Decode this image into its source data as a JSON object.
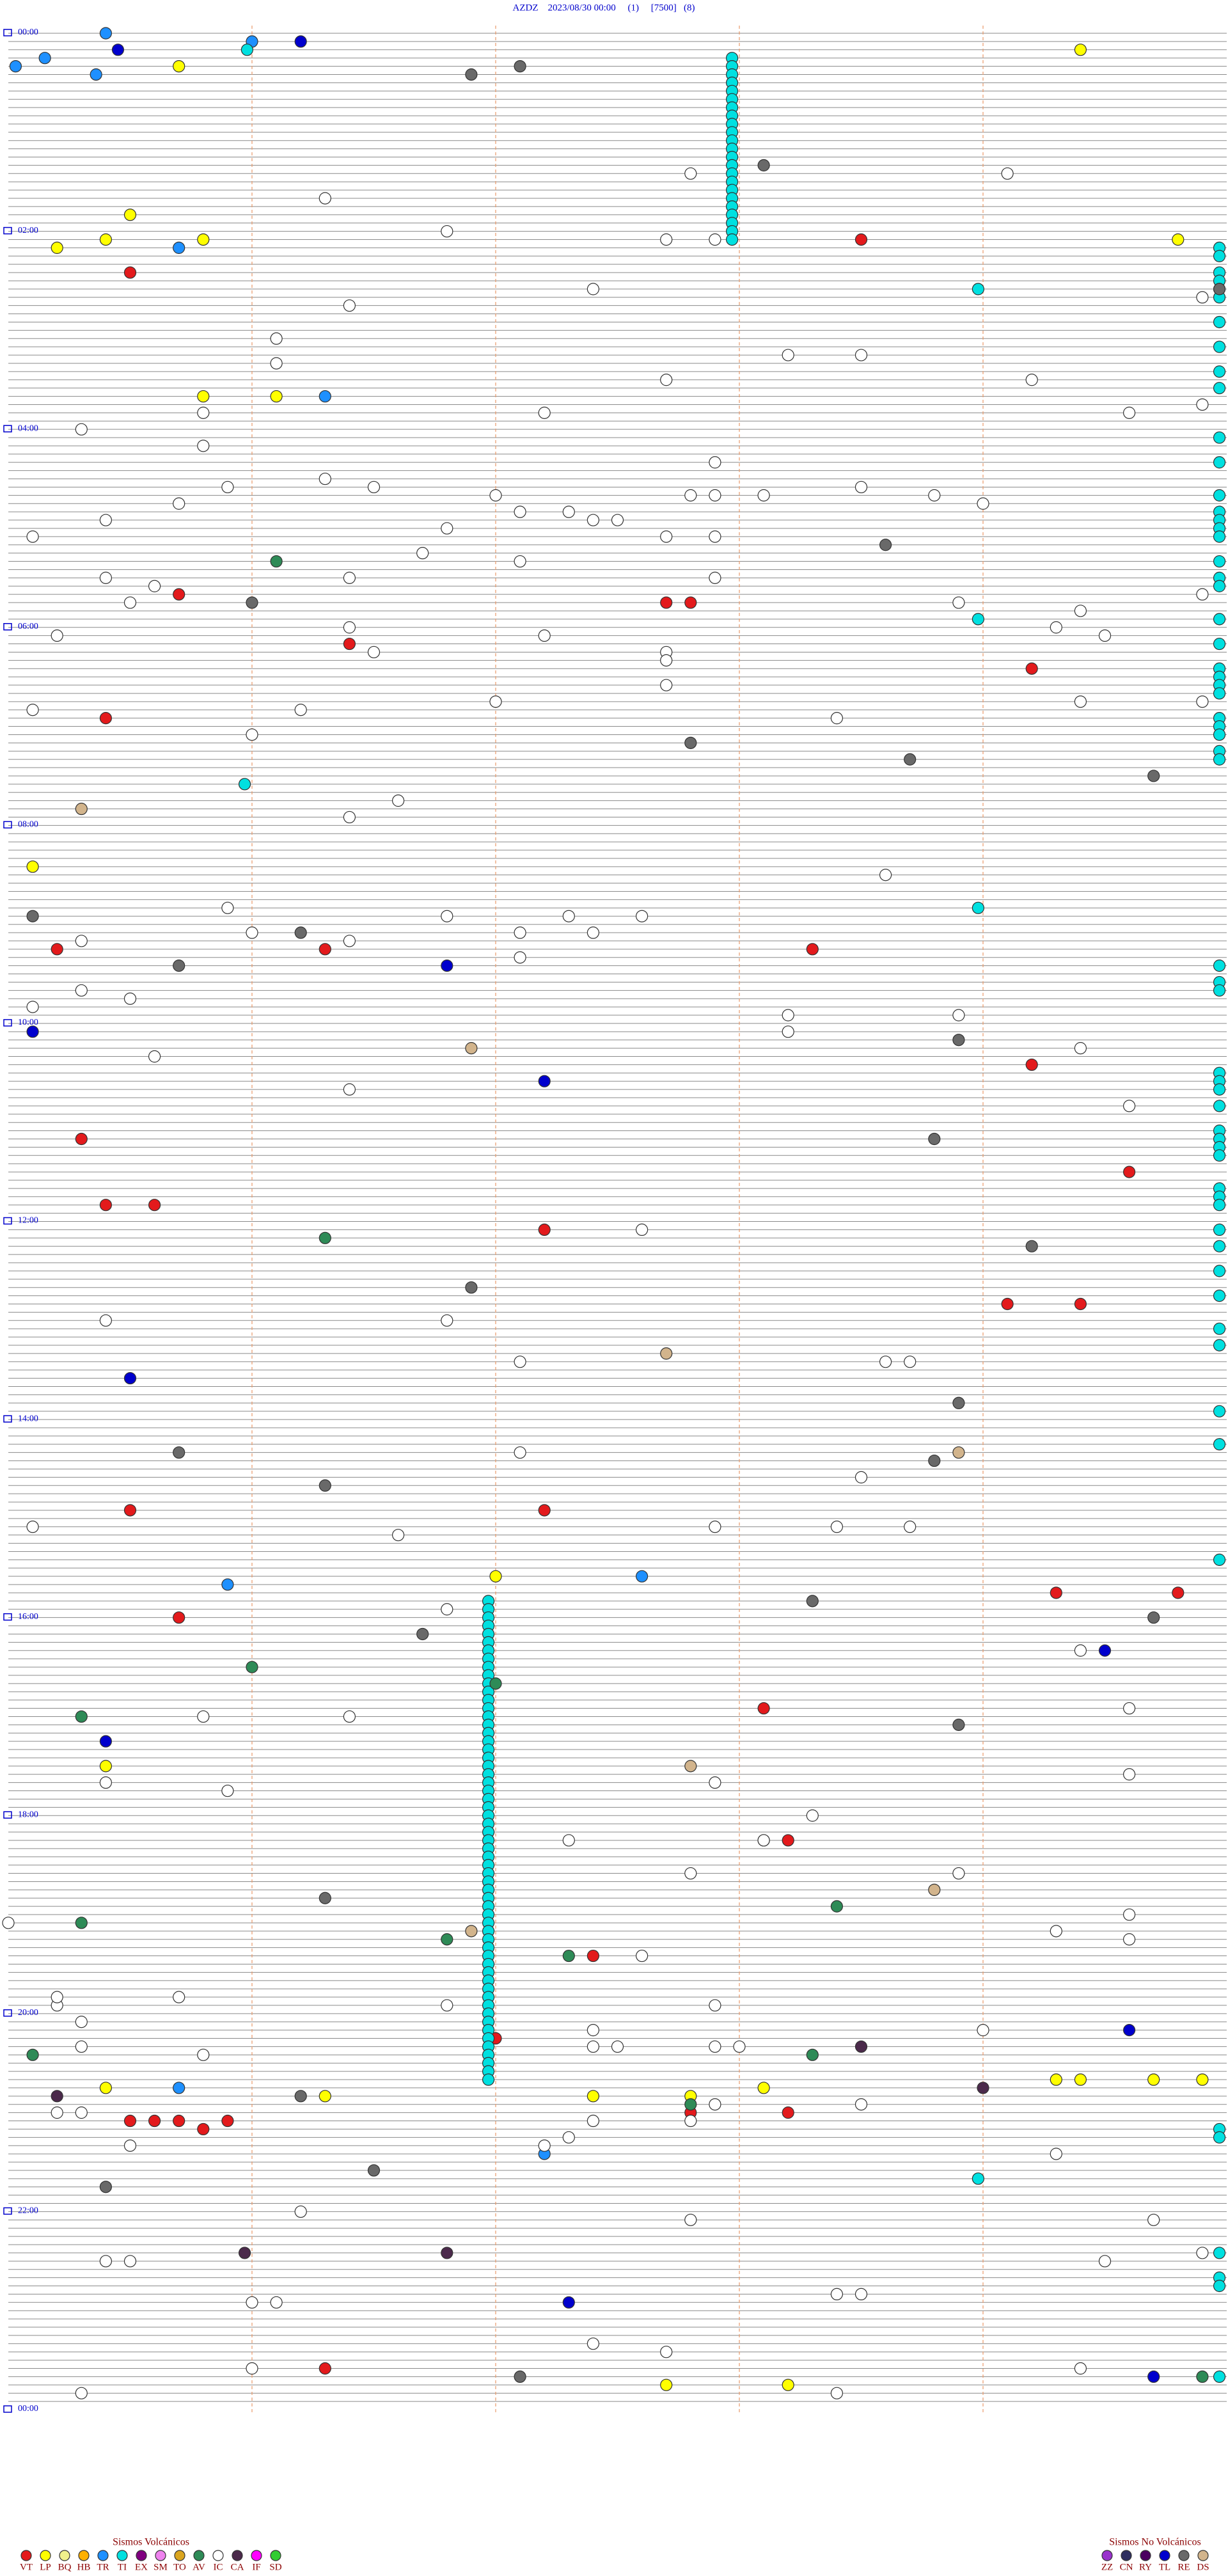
{
  "chart_data": {
    "type": "helicorder",
    "title": "AZDZ    2023/08/30 00:00     (1)     [7500]   (8)",
    "xlim": [
      0,
      5
    ],
    "xticks": [
      1,
      2,
      3,
      4
    ],
    "ylim": [
      0,
      1440
    ],
    "yticks": [
      {
        "value": 0,
        "label": "00:00"
      },
      {
        "value": 120,
        "label": "02:00"
      },
      {
        "value": 240,
        "label": "04:00"
      },
      {
        "value": 360,
        "label": "06:00"
      },
      {
        "value": 480,
        "label": "08:00"
      },
      {
        "value": 600,
        "label": "10:00"
      },
      {
        "value": 720,
        "label": "12:00"
      },
      {
        "value": 840,
        "label": "14:00"
      },
      {
        "value": 960,
        "label": "16:00"
      },
      {
        "value": 1080,
        "label": "18:00"
      },
      {
        "value": 1200,
        "label": "20:00"
      },
      {
        "value": 1320,
        "label": "22:00"
      },
      {
        "value": 1440,
        "label": "00:00"
      }
    ],
    "groups": [
      {
        "title": "Sismos Volcánicos",
        "series": [
          {
            "name": "VT",
            "color": "#e31a1c",
            "values": [
              145.5,
              340.7,
              347.7,
              347.8,
              371.4,
              389.2,
              415.4,
              556.3,
              555.2,
              558.3,
              629.2,
              670.3,
              694.6,
              710.4,
              710.6,
              727.2,
              774.1,
              774.4,
              895.5,
              897.2,
              949.3,
              949.8,
              960.7,
              1018.1,
              1098.1,
              1098.2,
              1167.4,
              1217.0,
              1262.8,
              1263.2,
              1265.5,
              1265.6,
              1265.7,
              1265.9,
              1270.8,
              1416.3,
              128.5
            ]
          },
          {
            "name": "LP",
            "color": "#ffff00",
            "values": [
              14.4,
              20.7,
              110.5,
              130.2,
              125.4,
              125.8,
              129.8,
              220.8,
              221.1,
              505.1,
              937.0,
              1050.4,
              1245.4,
              1251.3,
              1252.4,
              1252.8,
              1248.1,
              1244.3,
              1244.4,
              1244.7,
              1244.9,
              1427.7,
              1428.2
            ]
          },
          {
            "name": "BQ",
            "color": "#f0f08c",
            "values": []
          },
          {
            "name": "HB",
            "color": "#ffb000",
            "values": []
          },
          {
            "name": "TR",
            "color": "#1e90ff",
            "values": [
              0.4,
              6.0,
              20.03,
              15.15,
              25.36,
              130.7,
              221.3,
              940.9,
              937.6,
              1245.7,
              1287.2
            ]
          },
          {
            "name": "TI",
            "color": "#00e0e0",
            "values": [
              10.98,
              158.98,
              358.98,
              455.97,
              533.98,
              1303.98,
              17.97,
              22.97,
              27.97,
              32.97,
              37.97,
              42.97,
              47.97,
              52.97,
              57.97,
              62.97,
              67.97,
              72.97,
              77.97,
              82.97,
              87.97,
              92.97,
              97.97,
              102.97,
              107.97,
              112.97,
              117.97,
              122.97,
              127.97,
              951.97,
              956.97,
              961.97,
              966.97,
              971.97,
              976.97,
              981.97,
              986.97,
              991.97,
              996.97,
              1001.97,
              1006.97,
              1011.97,
              1016.97,
              1021.97,
              1026.97,
              1031.97,
              1036.97,
              1041.97,
              1046.97,
              1051.97,
              1056.97,
              1061.97,
              1066.97,
              1071.97,
              1076.97,
              1081.97,
              1086.97,
              1091.97,
              1096.97,
              1101.97,
              1106.97,
              1111.97,
              1116.97,
              1121.97,
              1126.97,
              1131.97,
              1136.97,
              1141.97,
              1146.97,
              1151.97,
              1156.97,
              1161.97,
              1166.97,
              1171.97,
              1176.97,
              1181.97,
              1186.97,
              1191.97,
              1196.97,
              1201.97,
              1206.97,
              1211.97,
              1216.97,
              1221.97,
              1226.97,
              1231.97,
              1236.97,
              1241.97,
              134.97,
              139.97,
              149.97,
              154.97,
              159.97,
              164.97,
              179.97,
              194.97,
              209.97,
              219.97,
              249.97,
              264.97,
              284.97,
              294.97,
              299.97,
              304.97,
              309.97,
              324.97,
              334.97,
              339.97,
              359.97,
              374.97,
              389.97,
              394.97,
              399.97,
              404.97,
              419.97,
              424.97,
              429.97,
              439.97,
              444.97,
              569.97,
              579.97,
              584.97,
              634.97,
              639.97,
              644.97,
              654.97,
              669.97,
              674.97,
              679.97,
              684.97,
              704.97,
              709.97,
              714.97,
              729.97,
              739.97,
              754.97,
              769.97,
              789.97,
              799.97,
              839.97,
              859.97,
              929.97,
              1274.97,
              1279.97,
              1349.97,
              1364.97,
              1369.97,
              1424.97
            ]
          },
          {
            "name": "EX",
            "color": "#800080",
            "values": []
          },
          {
            "name": "SM",
            "color": "#ee82ee",
            "values": []
          },
          {
            "name": "TO",
            "color": "#daa520",
            "values": []
          },
          {
            "name": "AV",
            "color": "#2e8b57",
            "values": [
              321.1,
              731.3,
              991.0,
              1002.0,
              1020.3,
              1138.4,
              1145.3,
              1156.8,
              1167.3,
              1225.1,
              1228.3,
              1257.8,
              1424.9
            ]
          },
          {
            "name": "IC",
            "color": "#ffffff",
            "values": [
              87.8,
              89.1,
              101.3,
              121.8,
              127.7,
              127.9,
              157.4,
              164.9,
              166.4,
              186.1,
              201.1,
              198.2,
              198.5,
              212.7,
              214.2,
              230.8,
              232.2,
              234.6,
              229.9,
              240.3,
              250.8,
              271.3,
              275.9,
              276.5,
              282.0,
              282.8,
              282.9,
              283.1,
              278.5,
              262.9,
              285.7,
              292.1,
              292.3,
              283.8,
              289.0,
              295.4,
              305.1,
              301.8,
              297.4,
              297.5,
              307.7,
              307.9,
              316.7,
              322.1,
              332.9,
              330.4,
              335.6,
              345.5,
              331.4,
              348.9,
              344.9,
              354.4,
              364.3,
              365.2,
              361.4,
              367.2,
              376.5,
              369.5,
              377.7,
              382.7,
              397.7,
              410.1,
              411.2,
              407.0,
              418.4,
              409.4,
              409.9,
              426.0,
              466.6,
              476.4,
              513.6,
              530.9,
              536.8,
              537.3,
              537.6,
              546.0,
              551.4,
              550.3,
              547.1,
              547.4,
              562.1,
              580.3,
              585.5,
              590.1,
              598.2,
              598.9,
              608.2,
              620.6,
              619.4,
              641.4,
              654.6,
              727.6,
              780.4,
              781.8,
              807.1,
              808.6,
              808.7,
              862.1,
              878.5,
              905.1,
              911.6,
              907.9,
              908.4,
              908.7,
              956.8,
              984.4,
              1020.8,
              1021.4,
              1019.6,
              1060.4,
              1062.9,
              1065.9,
              1059.6,
              1097.3,
              1083.3,
              1098.1,
              1117.8,
              1118.9,
              1145.0,
              1154.3,
              1144.6,
              1159.6,
              1167.6,
              1190.7,
              1195.2,
              1205.3,
              1196.8,
              1190.2,
              1197.9,
              1212.4,
              1214.0,
              1220.3,
              1225.8,
              1222.4,
              1222.5,
              1222.9,
              1223.0,
              1257.9,
              1258.5,
              1260.2,
              1260.3,
              1267.8,
              1267.4,
              1280.5,
              1277.3,
              1282.2,
              1289.3,
              1321.2,
              1327.8,
              1329.7,
              1350.4,
              1350.5,
              1354.5,
              1349.9,
              1376.0,
              1376.1,
              1373.4,
              1373.5,
              1402.4,
              1407.7,
              1416.0,
              1419.4,
              1430.3,
              1433.4
            ]
          },
          {
            "name": "CA",
            "color": "#4b2a4b",
            "values": [
              1223.5,
              1250.2,
              1249.0,
              1345.97,
              1346.8
            ]
          },
          {
            "name": "IF",
            "color": "#ff00ff",
            "values": []
          },
          {
            "name": "SD",
            "color": "#32cd32",
            "values": []
          }
        ]
      },
      {
        "title": "Sismos No Volcánicos",
        "series": [
          {
            "name": "ZZ",
            "color": "#9932cc",
            "values": []
          },
          {
            "name": "CN",
            "color": "#2f2f5f",
            "values": []
          },
          {
            "name": "RY",
            "color": "#4b0060",
            "values": []
          },
          {
            "name": "TL",
            "color": "#0000cd",
            "values": [
              10.45,
              6.2,
              566.8,
              605.1,
              637.2,
              815.5,
              984.5,
              1035.4,
              1214.6,
              1377.3,
              1424.7
            ]
          },
          {
            "name": "RE",
            "color": "#696969",
            "values": [
              26.9,
              22.1,
              83.1,
              159.97,
              313.6,
              346.0,
              432.8,
              443.7,
              454.7,
              535.1,
              546.2,
              565.7,
              613.9,
              673.8,
              739.2,
              761.9,
              833.9,
              860.7,
              868.8,
              881.3,
              953.3,
              964.7,
              971.7,
              1028.9,
              1131.3,
              1251.2,
              1296.5,
              1305.4,
              1422.1
            ]
          },
          {
            "name": "DS",
            "color": "#d2b48c",
            "values": [
              470.3,
              616.9,
              802.7,
              863.9,
              1052.8,
              1128.8,
              1151.9
            ]
          }
        ]
      }
    ]
  }
}
